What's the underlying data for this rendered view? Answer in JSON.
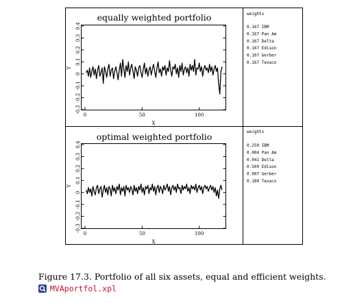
{
  "chart_data": [
    {
      "type": "line",
      "title": "equally weighted portfolio",
      "xlabel": "X",
      "ylabel": "Y",
      "xlim": [
        0,
        120
      ],
      "ylim": [
        -0.3,
        0.4
      ],
      "xticks": [
        0,
        50,
        100
      ],
      "yticks": [
        -0.3,
        -0.2,
        -0.1,
        0,
        0.1,
        0.2,
        0.3,
        0.4
      ],
      "ytick_labels": [
        "-0.3",
        "-0.2",
        "-0.1",
        "0",
        "0.1",
        "0.2",
        "0.3",
        "0.4"
      ],
      "series": [
        {
          "values": [
            0.01,
            0.03,
            -0.02,
            0.05,
            -0.03,
            0.02,
            0.06,
            -0.01,
            0.04,
            -0.04,
            0.03,
            0.07,
            -0.02,
            0.01,
            0.05,
            -0.08,
            0.06,
            0.02,
            -0.03,
            0.04,
            0.08,
            -0.02,
            0.03,
            0.05,
            -0.04,
            0.02,
            0.06,
            0.01,
            -0.05,
            0.03,
            0.09,
            -0.02,
            0.12,
            0.04,
            -0.03,
            0.07,
            0.02,
            0.1,
            -0.01,
            0.05,
            0.08,
            0.02,
            -0.04,
            0.06,
            0.03,
            -0.02,
            0.05,
            0.07,
            0.01,
            -0.03,
            0.04,
            0.09,
            0.0,
            0.05,
            -0.02,
            0.03,
            0.06,
            -0.01,
            0.04,
            0.08,
            0.02,
            -0.03,
            0.05,
            0.1,
            0.01,
            0.04,
            -0.02,
            0.06,
            0.03,
            0.07,
            -0.01,
            0.05,
            0.02,
            0.11,
            0.03,
            -0.02,
            0.06,
            0.04,
            0.08,
            0.0,
            0.05,
            -0.03,
            0.07,
            0.02,
            0.09,
            -0.01,
            0.04,
            0.06,
            0.01,
            0.05,
            -0.02,
            0.08,
            0.03,
            0.07,
            0.02,
            0.12,
            -0.01,
            0.05,
            0.04,
            0.09,
            0.02,
            0.06,
            -0.02,
            0.04,
            0.07,
            0.03,
            0.05,
            0.01,
            0.08,
            0.02,
            0.06,
            -0.01,
            0.04,
            0.07,
            0.02,
            0.05,
            -0.08,
            -0.17,
            0.02,
            0.06
          ]
        }
      ],
      "legend_heading": "weights",
      "weights": [
        {
          "value": "0.167",
          "asset": "IBM"
        },
        {
          "value": "0.167",
          "asset": "Pan Am"
        },
        {
          "value": "0.167",
          "asset": "Delta"
        },
        {
          "value": "0.167",
          "asset": "Edison"
        },
        {
          "value": "0.167",
          "asset": "Gerber"
        },
        {
          "value": "0.167",
          "asset": "Texaco"
        }
      ]
    },
    {
      "type": "line",
      "title": "optimal weighted portfolio",
      "xlabel": "X",
      "ylabel": "Y",
      "xlim": [
        0,
        120
      ],
      "ylim": [
        -0.3,
        0.4
      ],
      "xticks": [
        0,
        50,
        100
      ],
      "yticks": [
        -0.3,
        -0.2,
        -0.1,
        0,
        0.1,
        0.2,
        0.3,
        0.4
      ],
      "ytick_labels": [
        "-0.3",
        "-0.2",
        "-0.1",
        "0",
        "0.1",
        "0.2",
        "0.3",
        "0.4"
      ],
      "series": [
        {
          "values": [
            0.02,
            -0.01,
            0.04,
            0.0,
            0.03,
            -0.03,
            0.05,
            0.01,
            -0.02,
            0.04,
            0.06,
            -0.01,
            0.03,
            0.05,
            -0.04,
            0.02,
            0.06,
            0.0,
            0.04,
            -0.02,
            0.05,
            0.03,
            -0.03,
            0.06,
            0.01,
            0.04,
            -0.01,
            0.05,
            0.02,
            0.07,
            -0.02,
            0.04,
            0.01,
            0.05,
            -0.03,
            0.06,
            0.02,
            0.04,
            0.0,
            0.05,
            0.03,
            -0.02,
            0.06,
            0.01,
            0.04,
            -0.01,
            0.05,
            0.02,
            0.07,
            0.0,
            0.04,
            -0.02,
            0.05,
            0.03,
            0.06,
            -0.01,
            0.04,
            0.02,
            0.07,
            0.01,
            0.05,
            -0.02,
            0.04,
            0.06,
            0.0,
            0.05,
            0.03,
            -0.01,
            0.06,
            0.02,
            0.04,
            0.07,
            0.01,
            0.05,
            -0.02,
            0.04,
            0.06,
            0.02,
            0.05,
            0.0,
            0.07,
            0.03,
            0.04,
            -0.01,
            0.06,
            0.02,
            0.05,
            0.03,
            0.07,
            0.01,
            0.04,
            -0.01,
            0.06,
            0.03,
            0.05,
            0.02,
            0.07,
            0.0,
            0.04,
            0.06,
            0.02,
            0.05,
            -0.01,
            0.04,
            0.06,
            0.03,
            0.05,
            0.01,
            0.04,
            0.06,
            0.02,
            0.05,
            0.0,
            0.04,
            -0.03,
            0.02,
            -0.05,
            0.03,
            0.06,
            0.02
          ]
        }
      ],
      "legend_heading": "weights",
      "weights": [
        {
          "value": "0.250",
          "asset": "IBM"
        },
        {
          "value": "0.004",
          "asset": "Pan Am"
        },
        {
          "value": "0.041",
          "asset": "Delta"
        },
        {
          "value": "0.509",
          "asset": "Edison"
        },
        {
          "value": "0.007",
          "asset": "Gerber"
        },
        {
          "value": "0.189",
          "asset": "Texaco"
        }
      ]
    }
  ],
  "caption": {
    "text": "Figure 17.3.  Portfolio of all six assets, equal and efficient weights.",
    "script_icon": "magnifier-q-icon",
    "script_link": "MVAportfol.xpl",
    "link_color": "#c8102e"
  }
}
